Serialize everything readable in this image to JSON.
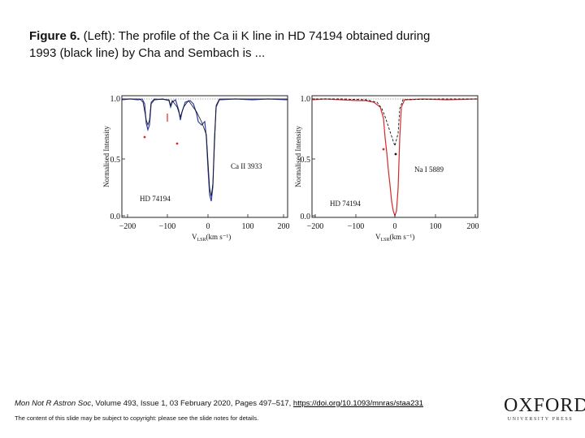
{
  "caption": {
    "label": "Figure 6.",
    "text": " (Left): The profile of the Ca ii K line in HD 74194 obtained during 1993 (black line) by Cha and Sembach is ..."
  },
  "figure": {
    "left_panel": {
      "ylabel": "Normalised Intensity",
      "xlabel": "V",
      "xlabel_sub": "LSR",
      "xlabel_units": "(km s⁻¹)",
      "line_label": "Ca II 3933",
      "star_label": "HD 74194",
      "yticks": [
        "1.0",
        "0.5",
        "0.0"
      ],
      "xticks": [
        "−200",
        "−100",
        "0",
        "100",
        "200"
      ]
    },
    "right_panel": {
      "ylabel": "Normalised Intensity",
      "xlabel": "V",
      "xlabel_sub": "LSR",
      "xlabel_units": "(km s⁻¹)",
      "line_label": "Na I 5889",
      "star_label": "HD 74194",
      "yticks": [
        "1.0",
        "0.5",
        "0.0"
      ],
      "xticks": [
        "−200",
        "−100",
        "0",
        "100",
        "200"
      ]
    }
  },
  "citation": {
    "journal": "Mon Not R Astron Soc",
    "details": ", Volume 493, Issue 1, 03 February 2020, Pages 497–517, ",
    "doi": "https://doi.org/10.1093/mnras/staa231"
  },
  "notice": "The content of this slide may be subject to copyright: please see the slide notes for details.",
  "logo": {
    "main": "OXFORD",
    "sub": "UNIVERSITY PRESS"
  },
  "colors": {
    "blue_line": "#2b3aa8",
    "red_line": "#d42a2a",
    "black_line": "#111111"
  }
}
